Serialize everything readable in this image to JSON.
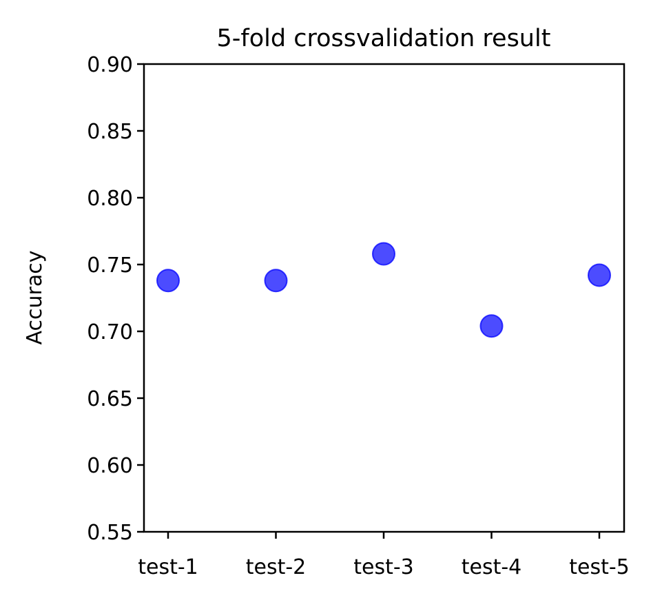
{
  "chart_data": {
    "type": "scatter",
    "title": "5-fold crossvalidation result",
    "xlabel": "",
    "ylabel": "Accuracy",
    "categories": [
      "test-1",
      "test-2",
      "test-3",
      "test-4",
      "test-5"
    ],
    "values": [
      0.738,
      0.738,
      0.758,
      0.704,
      0.742
    ],
    "ylim": [
      0.55,
      0.9
    ],
    "yticks": [
      "0.55",
      "0.60",
      "0.65",
      "0.70",
      "0.75",
      "0.80",
      "0.85",
      "0.90"
    ],
    "grid": false,
    "marker_color": "#0000ff",
    "marker_opacity": 0.7
  }
}
